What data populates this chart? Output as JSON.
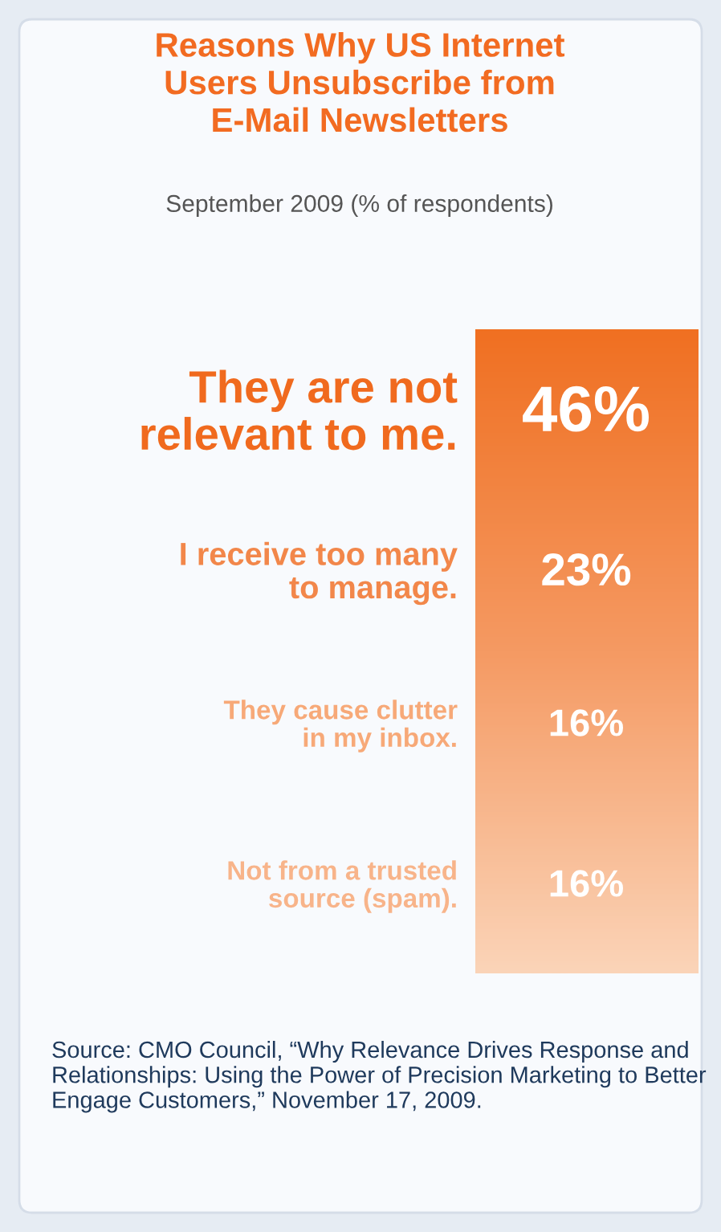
{
  "chart_data": {
    "type": "other",
    "title": "Reasons Why US Internet\nUsers Unsubscribe from\nE-Mail Newsletters",
    "subtitle": "September 2009 (% of respondents)",
    "categories": [
      "They are not\nrelevant to me.",
      "I receive too many\nto manage.",
      "They cause clutter\nin my inbox.",
      "Not from a trusted\nsource (spam)."
    ],
    "values": [
      46,
      23,
      16,
      16
    ],
    "value_labels": [
      "46%",
      "23%",
      "16%",
      "16%"
    ],
    "colors": [
      "#f06a1e",
      "#f2874a",
      "#f7a978",
      "#f8b48a"
    ],
    "annotations": [
      "Source: CMO Council, “Why Relevance Drives Response and Relationships: Using the Power of Precision Marketing to Better Engage Customers,” November 17, 2009."
    ]
  }
}
